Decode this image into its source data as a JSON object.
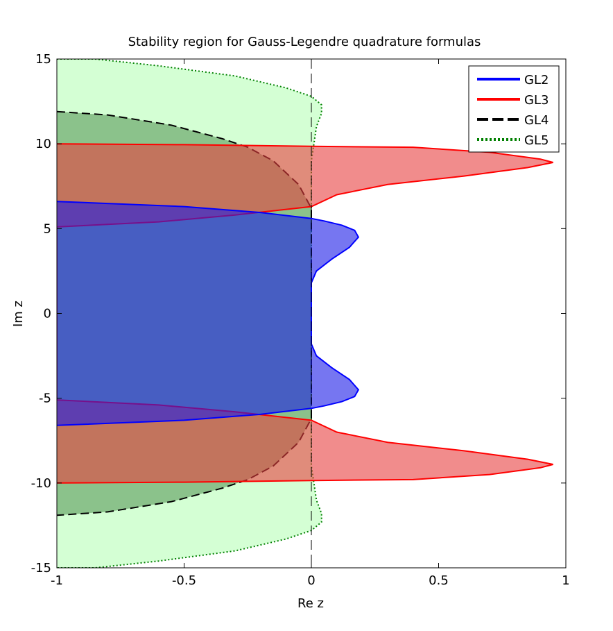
{
  "chart_data": {
    "type": "area",
    "title": "Stability region for Gauss-Legendre quadrature formulas",
    "xlabel": "Re z",
    "ylabel": "Im z",
    "xlim": [
      -1,
      1
    ],
    "ylim": [
      -15,
      15
    ],
    "xticks": [
      -1,
      -0.5,
      0,
      0.5,
      1
    ],
    "xtick_labels": [
      "-1",
      "-0.5",
      "0",
      "0.5",
      "1"
    ],
    "yticks": [
      -15,
      -10,
      -5,
      0,
      5,
      10,
      15
    ],
    "ytick_labels": [
      "-15",
      "-10",
      "-5",
      "0",
      "5",
      "10",
      "15"
    ],
    "grid": false,
    "legend_position": "top-right",
    "reference_line": {
      "x": 0,
      "style": "dashed"
    },
    "series": [
      {
        "name": "GL5",
        "line_color": "#008000",
        "line_style": "dotted",
        "fill_color": "#ccffcc",
        "boundary": [
          [
            -1,
            15.0
          ],
          [
            -0.85,
            15.0
          ],
          [
            -0.6,
            14.6
          ],
          [
            -0.3,
            14.0
          ],
          [
            -0.1,
            13.3
          ],
          [
            0.0,
            12.8
          ],
          [
            0.04,
            12.3
          ],
          [
            0.04,
            11.8
          ],
          [
            0.02,
            11.0
          ],
          [
            0.01,
            10.0
          ],
          [
            0.0,
            9.0
          ],
          [
            0.0,
            -9.0
          ],
          [
            0.01,
            -10.0
          ],
          [
            0.02,
            -11.0
          ],
          [
            0.04,
            -11.8
          ],
          [
            0.04,
            -12.3
          ],
          [
            0.0,
            -12.8
          ],
          [
            -0.1,
            -13.3
          ],
          [
            -0.3,
            -14.0
          ],
          [
            -0.6,
            -14.6
          ],
          [
            -0.85,
            -15.0
          ],
          [
            -1,
            -15.0
          ]
        ]
      },
      {
        "name": "GL4",
        "line_color": "#000000",
        "line_style": "dashed",
        "fill_color": "#5a9a5a",
        "boundary": [
          [
            -1,
            11.9
          ],
          [
            -0.8,
            11.7
          ],
          [
            -0.55,
            11.1
          ],
          [
            -0.35,
            10.3
          ],
          [
            -0.25,
            9.8
          ],
          [
            -0.15,
            9.0
          ],
          [
            -0.05,
            7.6
          ],
          [
            0.0,
            6.2
          ],
          [
            0.0,
            -6.2
          ],
          [
            -0.05,
            -7.6
          ],
          [
            -0.15,
            -9.0
          ],
          [
            -0.25,
            -9.8
          ],
          [
            -0.35,
            -10.3
          ],
          [
            -0.55,
            -11.1
          ],
          [
            -0.8,
            -11.7
          ],
          [
            -1,
            -11.9
          ]
        ]
      },
      {
        "name": "GL3",
        "line_color": "#ff0000",
        "line_style": "solid",
        "fill_color": "#e84040",
        "boundary": [
          [
            -1,
            10.0
          ],
          [
            -0.5,
            9.95
          ],
          [
            0.0,
            9.85
          ],
          [
            0.4,
            9.8
          ],
          [
            0.7,
            9.5
          ],
          [
            0.9,
            9.1
          ],
          [
            0.95,
            8.9
          ],
          [
            0.85,
            8.6
          ],
          [
            0.6,
            8.1
          ],
          [
            0.3,
            7.6
          ],
          [
            0.1,
            7.0
          ],
          [
            0.0,
            6.3
          ],
          [
            -0.3,
            5.8
          ],
          [
            -0.6,
            5.4
          ],
          [
            -1,
            5.1
          ],
          [
            -1,
            -5.1
          ],
          [
            -0.6,
            -5.4
          ],
          [
            -0.3,
            -5.8
          ],
          [
            0.0,
            -6.3
          ],
          [
            0.1,
            -7.0
          ],
          [
            0.3,
            -7.6
          ],
          [
            0.6,
            -8.1
          ],
          [
            0.85,
            -8.6
          ],
          [
            0.95,
            -8.9
          ],
          [
            0.9,
            -9.1
          ],
          [
            0.7,
            -9.5
          ],
          [
            0.4,
            -9.8
          ],
          [
            0.0,
            -9.85
          ],
          [
            -0.5,
            -9.95
          ],
          [
            -1,
            -10.0
          ]
        ]
      },
      {
        "name": "GL2",
        "line_color": "#0000ff",
        "line_style": "solid",
        "fill_color": "#1a1ae8",
        "boundary": [
          [
            -1,
            6.6
          ],
          [
            -0.5,
            6.3
          ],
          [
            -0.2,
            5.95
          ],
          [
            0.0,
            5.6
          ],
          [
            0.05,
            5.45
          ],
          [
            0.12,
            5.2
          ],
          [
            0.17,
            4.9
          ],
          [
            0.185,
            4.5
          ],
          [
            0.15,
            3.9
          ],
          [
            0.08,
            3.2
          ],
          [
            0.02,
            2.5
          ],
          [
            0.0,
            1.8
          ],
          [
            0.0,
            -1.8
          ],
          [
            0.02,
            -2.5
          ],
          [
            0.08,
            -3.2
          ],
          [
            0.15,
            -3.9
          ],
          [
            0.185,
            -4.5
          ],
          [
            0.17,
            -4.9
          ],
          [
            0.12,
            -5.2
          ],
          [
            0.05,
            -5.45
          ],
          [
            0.0,
            -5.6
          ],
          [
            -0.2,
            -5.95
          ],
          [
            -0.5,
            -6.3
          ],
          [
            -1,
            -6.6
          ]
        ]
      }
    ]
  }
}
